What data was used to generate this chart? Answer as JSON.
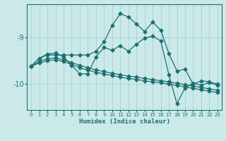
{
  "background_color": "#cce9e9",
  "grid_color": "#a8d0d0",
  "line_color": "#1a7070",
  "xlabel": "Humidex (Indice chaleur)",
  "xlim": [
    -0.5,
    23.5
  ],
  "ylim": [
    -10.55,
    -8.3
  ],
  "yticks": [
    -10,
    -9
  ],
  "xticks": [
    0,
    1,
    2,
    3,
    4,
    5,
    6,
    7,
    8,
    9,
    10,
    11,
    12,
    13,
    14,
    15,
    16,
    17,
    18,
    19,
    20,
    21,
    22,
    23
  ],
  "series": [
    {
      "x": [
        0,
        1,
        2,
        3,
        4,
        5,
        6,
        7,
        8,
        9,
        10,
        11,
        12,
        13,
        14,
        15,
        16,
        17,
        18,
        19,
        20,
        21,
        22,
        23
      ],
      "y": [
        -9.62,
        -9.45,
        -9.38,
        -9.38,
        -9.38,
        -9.38,
        -9.38,
        -9.38,
        -9.3,
        -9.1,
        -8.75,
        -8.5,
        -8.57,
        -8.72,
        -8.88,
        -8.68,
        -8.85,
        -9.35,
        -9.72,
        -9.68,
        -10.0,
        -9.93,
        -9.95,
        -10.0
      ]
    },
    {
      "x": [
        0,
        1,
        2,
        3,
        4,
        5,
        6,
        7,
        8,
        9,
        10,
        11,
        12,
        13,
        14,
        15,
        16,
        17,
        18,
        19,
        20,
        21,
        22,
        23
      ],
      "y": [
        -9.62,
        -9.55,
        -9.5,
        -9.48,
        -9.52,
        -9.58,
        -9.65,
        -9.7,
        -9.75,
        -9.78,
        -9.82,
        -9.85,
        -9.88,
        -9.9,
        -9.93,
        -9.95,
        -9.97,
        -10.0,
        -10.03,
        -10.06,
        -10.09,
        -10.12,
        -10.15,
        -10.18
      ]
    },
    {
      "x": [
        0,
        1,
        2,
        3,
        4,
        5,
        6,
        7,
        8,
        9,
        10,
        11,
        12,
        13,
        14,
        15,
        16,
        17,
        18,
        19,
        20,
        21,
        22,
        23
      ],
      "y": [
        -9.62,
        -9.52,
        -9.46,
        -9.44,
        -9.48,
        -9.54,
        -9.6,
        -9.65,
        -9.7,
        -9.73,
        -9.77,
        -9.8,
        -9.83,
        -9.85,
        -9.88,
        -9.9,
        -9.93,
        -9.95,
        -9.98,
        -10.01,
        -10.04,
        -10.07,
        -10.1,
        -10.13
      ]
    },
    {
      "x": [
        0,
        1,
        2,
        3,
        4,
        5,
        6,
        7,
        8,
        9,
        10,
        11,
        12,
        13,
        14,
        15,
        16,
        17,
        18,
        19,
        20,
        21,
        22,
        23
      ],
      "y": [
        -9.62,
        -9.45,
        -9.36,
        -9.34,
        -9.42,
        -9.6,
        -9.78,
        -9.78,
        -9.42,
        -9.22,
        -9.28,
        -9.18,
        -9.3,
        -9.15,
        -9.02,
        -8.98,
        -9.08,
        -9.8,
        -10.42,
        -10.08,
        -9.98,
        -10.02,
        -9.97,
        -10.02
      ]
    }
  ]
}
